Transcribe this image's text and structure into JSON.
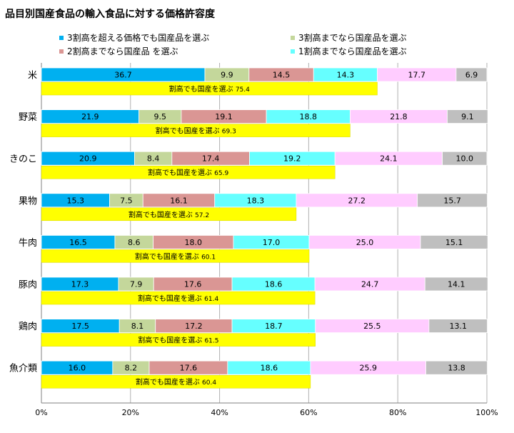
{
  "title": "品目別国産食品の輸入食品に対する価格許容度",
  "chart_data": {
    "type": "bar",
    "stacked": true,
    "orientation": "horizontal",
    "categories": [
      "米",
      "野菜",
      "きのこ",
      "果物",
      "牛肉",
      "豚肉",
      "鶏肉",
      "魚介類"
    ],
    "series": [
      {
        "name": "3割高を超える価格でも国産品を選ぶ",
        "color": "#00b0f0",
        "values": [
          36.7,
          21.9,
          20.9,
          15.3,
          16.5,
          17.3,
          17.5,
          16.0
        ]
      },
      {
        "name": "3割高までなら国産品を選ぶ",
        "color": "#c4d79b",
        "values": [
          9.9,
          9.5,
          8.4,
          7.5,
          8.6,
          7.9,
          8.1,
          8.2
        ]
      },
      {
        "name": "2割高までなら国産品 を選ぶ",
        "color": "#da9694",
        "values": [
          14.5,
          19.1,
          17.4,
          16.1,
          18.0,
          17.6,
          17.2,
          17.6
        ]
      },
      {
        "name": "1割高までなら国産品を選ぶ",
        "color": "#66ffff",
        "values": [
          14.3,
          18.8,
          19.2,
          18.3,
          17.0,
          18.6,
          18.7,
          18.6
        ]
      },
      {
        "name": "",
        "color": "#ffccff",
        "values": [
          17.7,
          21.8,
          24.1,
          27.2,
          25.0,
          24.7,
          25.5,
          25.9
        ]
      },
      {
        "name": "",
        "color": "#bfbfbf",
        "values": [
          6.9,
          9.1,
          10.0,
          15.7,
          15.1,
          14.1,
          13.1,
          13.8
        ]
      }
    ],
    "total_series": {
      "label": "割高でも国産を選ぶ",
      "color": "#ffff00",
      "values": [
        75.4,
        69.3,
        65.9,
        57.2,
        60.1,
        61.4,
        61.5,
        60.4
      ]
    },
    "xlim": [
      0,
      100
    ],
    "xticks": [
      "0%",
      "20%",
      "40%",
      "60%",
      "80%",
      "100%"
    ],
    "legend_position": "top",
    "grid": true
  }
}
